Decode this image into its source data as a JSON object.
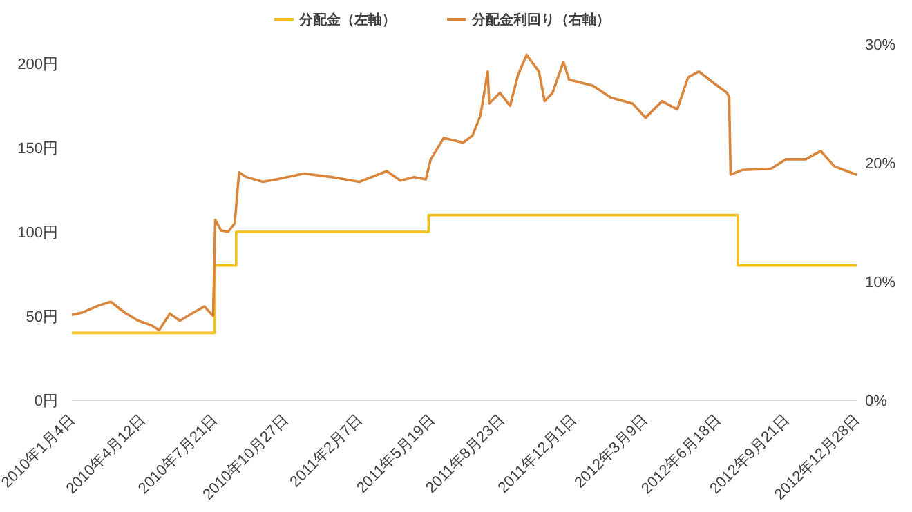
{
  "chart_data": {
    "type": "line",
    "legend": "top",
    "xlim": [
      "2010-01-04",
      "2012-12-28"
    ],
    "xticks": [
      {
        "value": "2010-01-04",
        "label": "2010年1月4日"
      },
      {
        "value": "2010-04-12",
        "label": "2010年4月12日"
      },
      {
        "value": "2010-07-21",
        "label": "2010年7月21日"
      },
      {
        "value": "2010-10-27",
        "label": "2010年10月27日"
      },
      {
        "value": "2011-02-07",
        "label": "2011年2月7日"
      },
      {
        "value": "2011-05-19",
        "label": "2011年5月19日"
      },
      {
        "value": "2011-08-23",
        "label": "2011年8月23日"
      },
      {
        "value": "2011-12-01",
        "label": "2011年12月1日"
      },
      {
        "value": "2012-03-09",
        "label": "2012年3月9日"
      },
      {
        "value": "2012-06-18",
        "label": "2012年6月18日"
      },
      {
        "value": "2012-09-21",
        "label": "2012年9月21日"
      },
      {
        "value": "2012-12-28",
        "label": "2012年12月28日"
      }
    ],
    "ylim": [
      0,
      200
    ],
    "yticks": [
      {
        "value": 0,
        "label": "0円"
      },
      {
        "value": 50,
        "label": "50円"
      },
      {
        "value": 100,
        "label": "100円"
      },
      {
        "value": 150,
        "label": "150円"
      },
      {
        "value": 200,
        "label": "200円"
      }
    ],
    "y2lim": [
      0,
      30
    ],
    "y2ticks": [
      {
        "value": 0,
        "label": "0%"
      },
      {
        "value": 10,
        "label": "10%"
      },
      {
        "value": 20,
        "label": "20%"
      },
      {
        "value": 30,
        "label": "30%"
      }
    ],
    "series": [
      {
        "name": "分配金（左軸）",
        "type": "step",
        "color": "#f3c01c",
        "x": [
          "2010-01-04",
          "2010-07-21",
          "2010-08-20",
          "2011-05-14",
          "2012-07-16",
          "2012-12-28"
        ],
        "values": [
          40,
          80,
          100,
          110,
          80,
          80
        ]
      },
      {
        "name": "分配金利回り（右軸）",
        "type": "line",
        "axis": "y2",
        "color": "#d9853b",
        "x": [
          "2010-01-04",
          "2010-01-19",
          "2010-02-11",
          "2010-02-27",
          "2010-03-18",
          "2010-04-06",
          "2010-04-25",
          "2010-05-05",
          "2010-05-20",
          "2010-06-03",
          "2010-06-22",
          "2010-07-07",
          "2010-07-19",
          "2010-07-22",
          "2010-07-30",
          "2010-08-09",
          "2010-08-18",
          "2010-08-24",
          "2010-09-03",
          "2010-09-26",
          "2010-10-15",
          "2010-11-22",
          "2010-12-30",
          "2011-02-07",
          "2011-03-17",
          "2011-04-05",
          "2011-04-24",
          "2011-05-10",
          "2011-05-17",
          "2011-06-04",
          "2011-07-01",
          "2011-07-14",
          "2011-07-25",
          "2011-08-04",
          "2011-08-06",
          "2011-08-21",
          "2011-09-04",
          "2011-09-15",
          "2011-09-27",
          "2011-10-14",
          "2011-10-22",
          "2011-11-02",
          "2011-11-17",
          "2011-11-25",
          "2011-12-28",
          "2012-01-22",
          "2012-02-21",
          "2012-03-10",
          "2012-04-02",
          "2012-04-23",
          "2012-05-08",
          "2012-05-23",
          "2012-06-13",
          "2012-07-01",
          "2012-07-04",
          "2012-07-06",
          "2012-07-22",
          "2012-08-31",
          "2012-09-21",
          "2012-10-18",
          "2012-11-08",
          "2012-11-27",
          "2012-12-28"
        ],
        "values": [
          7.2,
          7.4,
          8.0,
          8.3,
          7.4,
          6.7,
          6.3,
          5.9,
          7.3,
          6.7,
          7.4,
          7.9,
          7.1,
          15.2,
          14.3,
          14.2,
          14.9,
          19.2,
          18.8,
          18.4,
          18.6,
          19.1,
          18.8,
          18.4,
          19.3,
          18.5,
          18.8,
          18.6,
          20.3,
          22.1,
          21.7,
          22.3,
          24.0,
          27.7,
          25.0,
          25.9,
          24.8,
          27.4,
          29.1,
          27.7,
          25.2,
          25.9,
          28.5,
          27.0,
          26.5,
          25.5,
          25.0,
          23.8,
          25.2,
          24.5,
          27.2,
          27.7,
          26.7,
          25.9,
          25.5,
          19.0,
          19.4,
          19.5,
          20.3,
          20.3,
          21.0,
          19.7,
          19.0
        ]
      }
    ]
  }
}
